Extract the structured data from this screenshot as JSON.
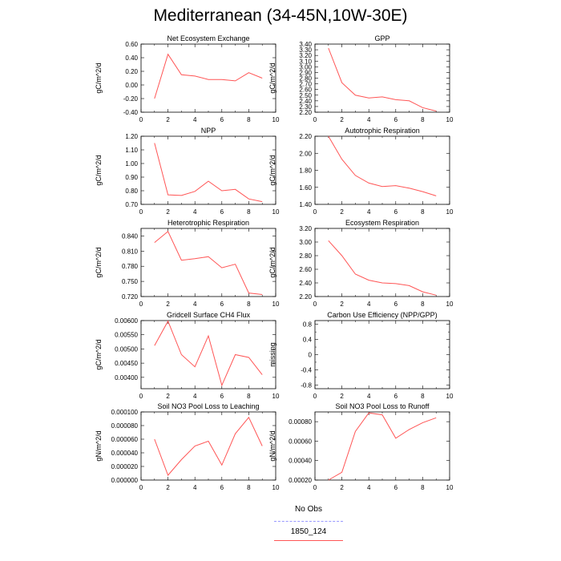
{
  "page": {
    "title": "Mediterranean (34-45N,10W-30E)"
  },
  "legend": {
    "items": [
      {
        "label": "No Obs",
        "color": "#9999ff",
        "style": "dashed"
      },
      {
        "label": "1850_124",
        "color": "#ff5555",
        "style": "solid"
      }
    ]
  },
  "chart_data": [
    {
      "type": "line",
      "title": "Net Ecosystem Exchange",
      "ylabel": "gC/m^2/d",
      "xlim": [
        0,
        10
      ],
      "ylim": [
        -0.4,
        0.6
      ],
      "xticks": [
        0,
        2,
        4,
        6,
        8,
        10
      ],
      "xtick_labels": [
        "0",
        "2",
        "4",
        "6",
        "8",
        "10"
      ],
      "yticks": [
        -0.4,
        -0.2,
        0,
        0.2,
        0.4,
        0.6
      ],
      "ytick_labels": [
        "-0.40",
        "-0.20",
        "0.00",
        "0.20",
        "0.40",
        "0.60"
      ],
      "series": [
        {
          "x": [
            1,
            2,
            3,
            4,
            5,
            6,
            7,
            8,
            9
          ],
          "y": [
            -0.2,
            0.45,
            0.15,
            0.13,
            0.08,
            0.08,
            0.06,
            0.18,
            0.1
          ]
        }
      ]
    },
    {
      "type": "line",
      "title": "GPP",
      "ylabel": "gC/m^2/d",
      "xlim": [
        0,
        10
      ],
      "ylim": [
        2.2,
        3.4
      ],
      "xticks": [
        0,
        2,
        4,
        6,
        8,
        10
      ],
      "xtick_labels": [
        "0",
        "2",
        "4",
        "6",
        "8",
        "10"
      ],
      "yticks": [
        2.2,
        2.3,
        2.4,
        2.5,
        2.6,
        2.7,
        2.8,
        2.9,
        3.0,
        3.1,
        3.2,
        3.3,
        3.4
      ],
      "ytick_labels": [
        "2.20",
        "2.30",
        "2.40",
        "2.50",
        "2.60",
        "2.70",
        "2.80",
        "2.90",
        "3.00",
        "3.10",
        "3.20",
        "3.30",
        "3.40"
      ],
      "series": [
        {
          "x": [
            1,
            2,
            3,
            4,
            5,
            6,
            7,
            8,
            9
          ],
          "y": [
            3.33,
            2.72,
            2.5,
            2.45,
            2.47,
            2.42,
            2.4,
            2.28,
            2.22
          ]
        }
      ]
    },
    {
      "type": "line",
      "title": "NPP",
      "ylabel": "gC/m^2/d",
      "xlim": [
        0,
        10
      ],
      "ylim": [
        0.7,
        1.2
      ],
      "xticks": [
        0,
        2,
        4,
        6,
        8,
        10
      ],
      "xtick_labels": [
        "0",
        "2",
        "4",
        "6",
        "8",
        "10"
      ],
      "yticks": [
        0.7,
        0.8,
        0.9,
        1.0,
        1.1,
        1.2
      ],
      "ytick_labels": [
        "0.70",
        "0.80",
        "0.90",
        "1.00",
        "1.10",
        "1.20"
      ],
      "series": [
        {
          "x": [
            1,
            2,
            3,
            4,
            5,
            6,
            7,
            8,
            9
          ],
          "y": [
            1.15,
            0.77,
            0.765,
            0.795,
            0.87,
            0.8,
            0.81,
            0.74,
            0.72
          ]
        }
      ]
    },
    {
      "type": "line",
      "title": "Autotrophic Respiration",
      "ylabel": "gC/m^2/d",
      "xlim": [
        0,
        10
      ],
      "ylim": [
        1.4,
        2.2
      ],
      "xticks": [
        0,
        2,
        4,
        6,
        8,
        10
      ],
      "xtick_labels": [
        "0",
        "2",
        "4",
        "6",
        "8",
        "10"
      ],
      "yticks": [
        1.4,
        1.6,
        1.8,
        2.0,
        2.2
      ],
      "ytick_labels": [
        "1.40",
        "1.60",
        "1.80",
        "2.00",
        "2.20"
      ],
      "series": [
        {
          "x": [
            1,
            2,
            3,
            4,
            5,
            6,
            7,
            8,
            9
          ],
          "y": [
            2.2,
            1.93,
            1.74,
            1.65,
            1.61,
            1.62,
            1.59,
            1.55,
            1.5
          ]
        }
      ]
    },
    {
      "type": "line",
      "title": "Heterotrophic Respiration",
      "ylabel": "gC/m^2/d",
      "xlim": [
        0,
        10
      ],
      "ylim": [
        0.72,
        0.855
      ],
      "xticks": [
        0,
        2,
        4,
        6,
        8,
        10
      ],
      "xtick_labels": [
        "0",
        "2",
        "4",
        "6",
        "8",
        "10"
      ],
      "yticks": [
        0.72,
        0.75,
        0.78,
        0.81,
        0.84
      ],
      "ytick_labels": [
        "0.720",
        "0.750",
        "0.780",
        "0.810",
        "0.840"
      ],
      "series": [
        {
          "x": [
            1,
            2,
            3,
            4,
            5,
            6,
            7,
            8,
            9
          ],
          "y": [
            0.827,
            0.849,
            0.792,
            0.795,
            0.799,
            0.777,
            0.784,
            0.727,
            0.724
          ]
        }
      ]
    },
    {
      "type": "line",
      "title": "Ecosystem Respiration",
      "ylabel": "gC/m^2/d",
      "xlim": [
        0,
        10
      ],
      "ylim": [
        2.2,
        3.2
      ],
      "xticks": [
        0,
        2,
        4,
        6,
        8,
        10
      ],
      "xtick_labels": [
        "0",
        "2",
        "4",
        "6",
        "8",
        "10"
      ],
      "yticks": [
        2.2,
        2.4,
        2.6,
        2.8,
        3.0,
        3.2
      ],
      "ytick_labels": [
        "2.20",
        "2.40",
        "2.60",
        "2.80",
        "3.00",
        "3.20"
      ],
      "series": [
        {
          "x": [
            1,
            2,
            3,
            4,
            5,
            6,
            7,
            8,
            9
          ],
          "y": [
            3.02,
            2.8,
            2.53,
            2.44,
            2.4,
            2.39,
            2.36,
            2.27,
            2.22
          ]
        }
      ]
    },
    {
      "type": "line",
      "title": "Gridcell Surface CH4 Flux",
      "ylabel": "gC/m^2/d",
      "xlim": [
        0,
        10
      ],
      "ylim": [
        0.0036,
        0.006
      ],
      "xticks": [
        0,
        2,
        4,
        6,
        8,
        10
      ],
      "xtick_labels": [
        "0",
        "2",
        "4",
        "6",
        "8",
        "10"
      ],
      "yticks": [
        0.004,
        0.0045,
        0.005,
        0.0055,
        0.006
      ],
      "ytick_labels": [
        "0.00400",
        "0.00450",
        "0.00500",
        "0.00550",
        "0.00600"
      ],
      "series": [
        {
          "x": [
            1,
            2,
            3,
            4,
            5,
            6,
            7,
            8,
            9
          ],
          "y": [
            0.00512,
            0.00598,
            0.0048,
            0.00437,
            0.00546,
            0.00372,
            0.0048,
            0.0047,
            0.00409
          ]
        }
      ]
    },
    {
      "type": "line",
      "title": "Carbon Use Efficiency (NPP/GPP)",
      "ylabel": "missing",
      "xlim": [
        0,
        10
      ],
      "ylim": [
        -0.9,
        0.9
      ],
      "xticks": [
        0,
        2,
        4,
        6,
        8,
        10
      ],
      "xtick_labels": [
        "0",
        "2",
        "4",
        "6",
        "8",
        "10"
      ],
      "yticks": [
        -0.8,
        -0.4,
        0,
        0.4,
        0.8
      ],
      "ytick_labels": [
        "-0.8",
        "-0.4",
        "0",
        "0.4",
        "0.8"
      ],
      "minor_yticks": [
        -0.6,
        -0.2,
        0.2,
        0.6
      ],
      "series": []
    },
    {
      "type": "line",
      "title": "Soil NO3 Pool Loss to Leaching",
      "ylabel": "gN/m^2/d",
      "xlim": [
        0,
        10
      ],
      "ylim": [
        0,
        0.0001
      ],
      "xticks": [
        0,
        2,
        4,
        6,
        8,
        10
      ],
      "xtick_labels": [
        "0",
        "2",
        "4",
        "6",
        "8",
        "10"
      ],
      "yticks": [
        0,
        2e-05,
        4e-05,
        6e-05,
        8e-05,
        0.0001
      ],
      "ytick_labels": [
        "0.000000",
        "0.000020",
        "0.000040",
        "0.000060",
        "0.000080",
        "0.000100"
      ],
      "series": [
        {
          "x": [
            1,
            2,
            3,
            4,
            5,
            6,
            7,
            8,
            9
          ],
          "y": [
            6e-05,
            7e-06,
            3e-05,
            5e-05,
            5.7e-05,
            2.2e-05,
            6.8e-05,
            9.2e-05,
            5e-05
          ]
        }
      ]
    },
    {
      "type": "line",
      "title": "Soil NO3 Pool Loss to Runoff",
      "ylabel": "gN/m^2/d",
      "xlim": [
        0,
        10
      ],
      "ylim": [
        0.0002,
        0.0009
      ],
      "xticks": [
        0,
        2,
        4,
        6,
        8,
        10
      ],
      "xtick_labels": [
        "0",
        "2",
        "4",
        "6",
        "8",
        "10"
      ],
      "yticks": [
        0.0002,
        0.0004,
        0.0006,
        0.0008
      ],
      "ytick_labels": [
        "0.00020",
        "0.00040",
        "0.00060",
        "0.00080"
      ],
      "series": [
        {
          "x": [
            1,
            2,
            3,
            4,
            5,
            6,
            7,
            8,
            9
          ],
          "y": [
            0.0002,
            0.00028,
            0.0007,
            0.00089,
            0.00087,
            0.00063,
            0.00072,
            0.00079,
            0.00084
          ]
        }
      ]
    }
  ]
}
